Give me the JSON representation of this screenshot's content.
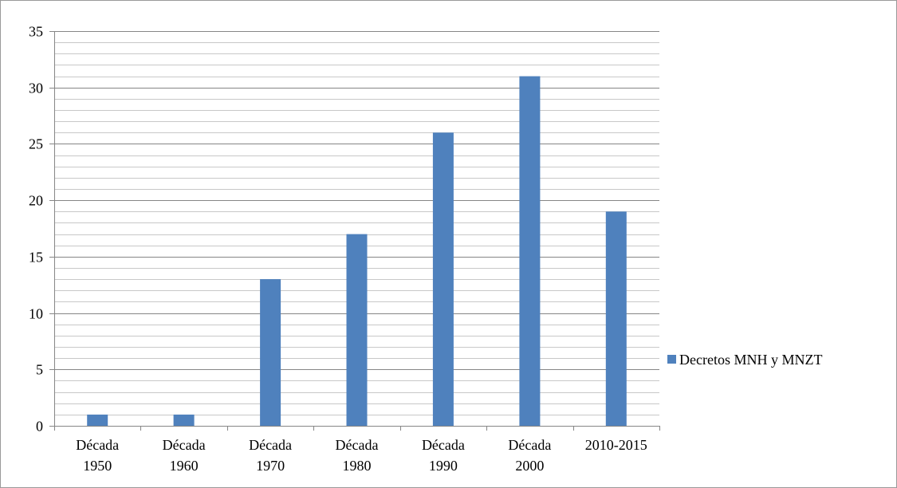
{
  "chart_data": {
    "type": "bar",
    "categories": [
      [
        "Década",
        "1950"
      ],
      [
        "Década",
        "1960"
      ],
      [
        "Década",
        "1970"
      ],
      [
        "Década",
        "1980"
      ],
      [
        "Década",
        "1990"
      ],
      [
        "Década",
        "2000"
      ],
      [
        "2010-2015"
      ]
    ],
    "series": [
      {
        "name": "Decretos MNH y MNZT",
        "values": [
          1,
          1,
          13,
          17,
          26,
          31,
          19
        ],
        "color": "#4f81bd"
      }
    ],
    "y_ticks": [
      "0",
      "5",
      "10",
      "15",
      "20",
      "25",
      "30",
      "35"
    ],
    "ylim": [
      0,
      35
    ],
    "major_step": 5,
    "minor_step": 1,
    "grid": true,
    "legend_position": "right",
    "title": "",
    "xlabel": "",
    "ylabel": ""
  }
}
